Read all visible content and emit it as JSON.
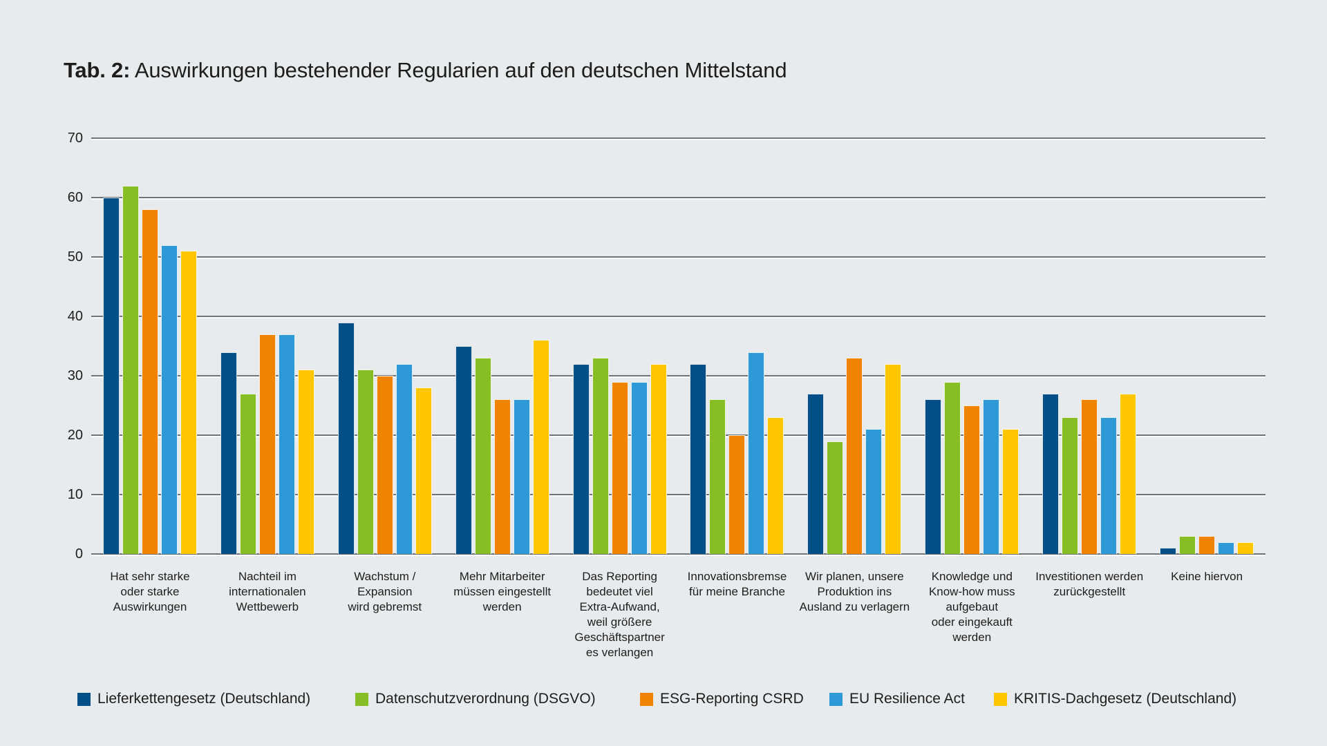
{
  "title": {
    "prefix": "Tab. 2:",
    "text": "Auswirkungen bestehender Regularien auf den deutschen Mittelstand"
  },
  "colors": {
    "background": "#e8ebee",
    "gridline": "#6d7378",
    "text": "#1d1d1b",
    "series": [
      "#045086",
      "#87bd25",
      "#f08300",
      "#2d9ad7",
      "#fdc600"
    ]
  },
  "chart_data": {
    "type": "bar",
    "title": "Tab. 2: Auswirkungen bestehender Regularien auf den deutschen Mittelstand",
    "xlabel": "",
    "ylabel": "",
    "ylim": [
      0,
      70
    ],
    "yticks": [
      0,
      10,
      20,
      30,
      40,
      50,
      60,
      70
    ],
    "grid": true,
    "legend_position": "bottom",
    "categories": [
      "Hat sehr starke oder starke Auswirkungen",
      "Nachteil im internationalen Wettbewerb",
      "Wachstum / Expansion wird gebremst",
      "Mehr Mitarbeiter müssen eingestellt werden",
      "Das Reporting bedeutet viel Extra-Aufwand, weil größere Geschäftspartner es verlangen",
      "Innovationsbremse für meine Branche",
      "Wir planen, unsere Produktion ins Ausland zu verlagern",
      "Knowledge und Know-how muss aufgebaut oder eingekauft werden",
      "Investitionen werden zurückgestellt",
      "Keine hiervon"
    ],
    "category_lines": [
      [
        "Hat sehr starke",
        "oder starke",
        "Auswirkungen"
      ],
      [
        "Nachteil im",
        "internationalen",
        "Wettbewerb"
      ],
      [
        "Wachstum / Expansion",
        "wird gebremst"
      ],
      [
        "Mehr Mitarbeiter",
        "müssen eingestellt",
        "werden"
      ],
      [
        "Das Reporting",
        "bedeutet viel",
        "Extra-Aufwand,",
        "weil größere",
        "Geschäftspartner",
        "es verlangen"
      ],
      [
        "Innovationsbremse",
        "für meine Branche"
      ],
      [
        "Wir planen, unsere",
        "Produktion ins",
        "Ausland zu verlagern"
      ],
      [
        "Knowledge und",
        "Know-how muss",
        "aufgebaut",
        "oder eingekauft",
        "werden"
      ],
      [
        "Investitionen werden",
        "zurückgestellt"
      ],
      [
        "Keine hiervon"
      ]
    ],
    "series": [
      {
        "name": "Lieferkettengesetz (Deutschland)",
        "color": "#045086",
        "values": [
          60,
          34,
          39,
          35,
          32,
          32,
          27,
          26,
          27,
          1
        ]
      },
      {
        "name": "Datenschutzverordnung (DSGVO)",
        "color": "#87bd25",
        "values": [
          62,
          27,
          31,
          33,
          33,
          26,
          19,
          29,
          23,
          3
        ]
      },
      {
        "name": "ESG-Reporting CSRD",
        "color": "#f08300",
        "values": [
          58,
          37,
          30,
          26,
          29,
          20,
          33,
          25,
          26,
          3
        ]
      },
      {
        "name": "EU Resilience Act",
        "color": "#2d9ad7",
        "values": [
          52,
          37,
          32,
          26,
          29,
          34,
          21,
          26,
          23,
          2
        ]
      },
      {
        "name": "KRITIS-Dachgesetz (Deutschland)",
        "color": "#fdc600",
        "values": [
          51,
          31,
          28,
          36,
          32,
          23,
          32,
          21,
          27,
          2
        ]
      }
    ]
  }
}
